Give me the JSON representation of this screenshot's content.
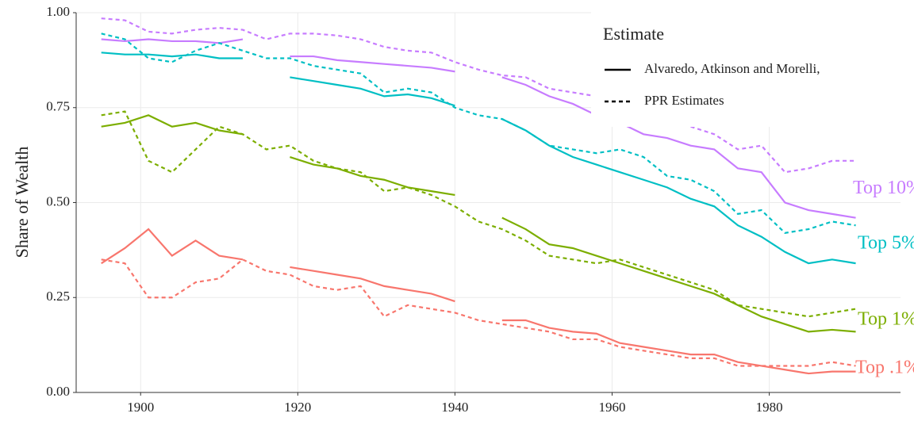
{
  "chart_data": {
    "type": "line",
    "y_label": "Share of Wealth",
    "x": [
      1895,
      1898,
      1901,
      1904,
      1907,
      1910,
      1913,
      1916,
      1919,
      1922,
      1925,
      1928,
      1931,
      1934,
      1937,
      1940,
      1943,
      1946,
      1949,
      1952,
      1955,
      1958,
      1961,
      1964,
      1967,
      1970,
      1973,
      1976,
      1979,
      1982,
      1985,
      1988,
      1991
    ],
    "xlim": [
      1891.8,
      1996.7
    ],
    "xticks": [
      1900,
      1920,
      1940,
      1960,
      1980
    ],
    "ylim": [
      0,
      1
    ],
    "yticks": [
      {
        "value": 0,
        "label": "0.00"
      },
      {
        "value": 0.25,
        "label": "0.25"
      },
      {
        "value": 0.5,
        "label": "0.50"
      },
      {
        "value": 0.75,
        "label": "0.75"
      },
      {
        "value": 1,
        "label": "1.00"
      }
    ],
    "grid": true,
    "legend": {
      "title": "Estimate",
      "entries": [
        {
          "label": "Alvaredo, Atkinson and Morelli,",
          "linetype": "solid"
        },
        {
          "label": "PPR Estimates",
          "linetype": "dashed"
        }
      ]
    },
    "series": [
      {
        "name": "Top 10%",
        "color": "#c77cff",
        "linetype": "solid",
        "values": [
          0.93,
          0.925,
          0.93,
          0.925,
          0.925,
          0.92,
          0.93,
          null,
          0.885,
          0.885,
          0.875,
          0.87,
          0.865,
          0.86,
          0.855,
          0.845,
          null,
          0.83,
          0.81,
          0.78,
          0.76,
          0.73,
          0.71,
          0.68,
          0.67,
          0.65,
          0.64,
          0.59,
          0.58,
          0.5,
          0.48,
          0.47,
          0.46
        ]
      },
      {
        "color": "#c77cff",
        "linetype": "dashed",
        "values": [
          0.985,
          0.98,
          0.95,
          0.945,
          0.955,
          0.96,
          0.955,
          0.93,
          0.945,
          0.945,
          0.94,
          0.93,
          0.91,
          0.9,
          0.895,
          0.87,
          0.85,
          0.835,
          0.83,
          0.8,
          0.79,
          0.78,
          0.78,
          0.77,
          null,
          0.7,
          0.68,
          0.64,
          0.65,
          0.58,
          0.59,
          0.61,
          0.61
        ]
      },
      {
        "name": "Top 5%",
        "color": "#00bfc4",
        "linetype": "solid",
        "values": [
          0.895,
          0.89,
          0.89,
          0.885,
          0.89,
          0.88,
          0.88,
          null,
          0.83,
          0.82,
          0.81,
          0.8,
          0.78,
          0.785,
          0.775,
          0.755,
          null,
          0.72,
          0.69,
          0.65,
          0.62,
          0.6,
          0.58,
          0.56,
          0.54,
          0.51,
          0.49,
          0.44,
          0.41,
          0.37,
          0.34,
          0.35,
          0.34
        ]
      },
      {
        "color": "#00bfc4",
        "linetype": "dashed",
        "values": [
          0.945,
          0.93,
          0.88,
          0.87,
          0.9,
          0.92,
          0.9,
          0.88,
          0.88,
          0.86,
          0.85,
          0.84,
          0.79,
          0.8,
          0.79,
          0.75,
          0.73,
          0.72,
          0.69,
          0.65,
          0.64,
          0.63,
          0.64,
          0.62,
          0.57,
          0.56,
          0.53,
          0.47,
          0.48,
          0.42,
          0.43,
          0.45,
          0.44
        ]
      },
      {
        "name": "Top 1%",
        "color": "#7cae00",
        "linetype": "solid",
        "values": [
          0.7,
          0.71,
          0.73,
          0.7,
          0.71,
          0.69,
          0.68,
          null,
          0.62,
          0.6,
          0.59,
          0.57,
          0.56,
          0.54,
          0.53,
          0.52,
          null,
          0.46,
          0.43,
          0.39,
          0.38,
          0.36,
          0.34,
          0.32,
          0.3,
          0.28,
          0.26,
          0.23,
          0.2,
          0.18,
          0.16,
          0.165,
          0.16
        ]
      },
      {
        "color": "#7cae00",
        "linetype": "dashed",
        "values": [
          0.73,
          0.74,
          0.61,
          0.58,
          0.64,
          0.7,
          0.68,
          0.64,
          0.65,
          0.61,
          0.59,
          0.58,
          0.53,
          0.54,
          0.52,
          0.49,
          0.45,
          0.43,
          0.4,
          0.36,
          0.35,
          0.34,
          0.35,
          0.33,
          0.31,
          0.29,
          0.27,
          0.23,
          0.22,
          0.21,
          0.2,
          0.21,
          0.22
        ]
      },
      {
        "name": "Top .1%",
        "color": "#f8766d",
        "linetype": "solid",
        "values": [
          0.34,
          0.38,
          0.43,
          0.36,
          0.4,
          0.36,
          0.35,
          null,
          0.33,
          0.32,
          0.31,
          0.3,
          0.28,
          0.27,
          0.26,
          0.24,
          null,
          0.19,
          0.19,
          0.17,
          0.16,
          0.155,
          0.13,
          0.12,
          0.11,
          0.1,
          0.1,
          0.08,
          0.07,
          0.06,
          0.05,
          0.055,
          0.055
        ]
      },
      {
        "color": "#f8766d",
        "linetype": "dashed",
        "values": [
          0.35,
          0.34,
          0.25,
          0.25,
          0.29,
          0.3,
          0.35,
          0.32,
          0.31,
          0.28,
          0.27,
          0.28,
          0.2,
          0.23,
          0.22,
          0.21,
          0.19,
          0.18,
          0.17,
          0.16,
          0.14,
          0.14,
          0.12,
          0.11,
          0.1,
          0.09,
          0.09,
          0.07,
          0.07,
          0.07,
          0.07,
          0.08,
          0.07
        ]
      }
    ]
  }
}
